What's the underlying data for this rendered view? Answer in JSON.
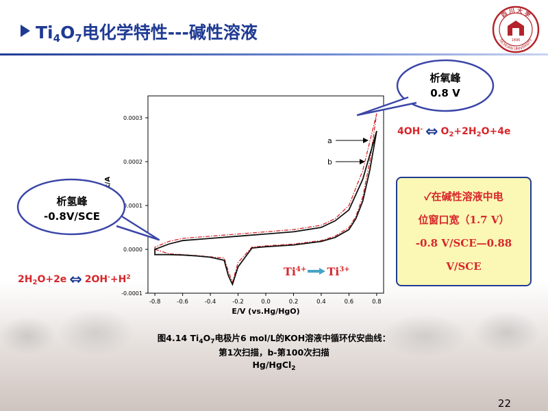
{
  "slide": {
    "title_prefix": "Ti",
    "title_sub1": "4",
    "title_mid": "O",
    "title_sub2": "7",
    "title_suffix": "电化学特性---碱性溶液",
    "page_number": "22"
  },
  "callouts": {
    "oxygen_peak_label": "析氧峰",
    "oxygen_peak_value": "0.8 V",
    "hydrogen_peak_label": "析氢峰",
    "hydrogen_peak_value": "-0.8V/SCE"
  },
  "equations": {
    "oxygen_left": "4OH",
    "oxygen_left_sup": "-",
    "oxygen_right_1": "O",
    "oxygen_right_sub1": "2",
    "oxygen_right_2": "+2H",
    "oxygen_right_sub2": "2",
    "oxygen_right_3": "O+4e",
    "hydrogen_left_1": "2H",
    "hydrogen_left_sub": "2",
    "hydrogen_left_2": "O+2e",
    "hydrogen_right_1": "2OH",
    "hydrogen_right_sup": "-",
    "hydrogen_right_2": "+H",
    "hydrogen_right_sup2": "2",
    "ti_left": "Ti",
    "ti_left_sup": "4+",
    "ti_right": "Ti",
    "ti_right_sup": "3+"
  },
  "note": {
    "line1": "✓在碱性溶液中电",
    "line2": "位窗口宽（1.7 V）",
    "line3": "-0.8 V/SCE—0.88",
    "line4": "V/SCE"
  },
  "caption": {
    "line1_a": "图4.14 Ti",
    "line1_sub1": "4",
    "line1_b": "O",
    "line1_sub2": "7",
    "line1_c": "电极片6 mol/L的KOH溶液中循环伏安曲线：",
    "line2": "第1次扫描，b-第100次扫描",
    "line3_a": "Hg/HgCl",
    "line3_sub": "2"
  },
  "logo": {
    "text_top": "四 川 大 学",
    "text_bottom": "SICHUAN UNIVERSITY",
    "year": "1896"
  },
  "chart_data": {
    "type": "line",
    "xlabel": "E/V (vs.Hg/HgO)",
    "ylabel": "Current/A",
    "xlim": [
      -0.85,
      0.85
    ],
    "ylim": [
      -0.0001,
      0.00035
    ],
    "x_ticks": [
      -0.8,
      -0.6,
      -0.4,
      -0.2,
      0.0,
      0.2,
      0.4,
      0.6,
      0.8
    ],
    "x_tick_labels": [
      "-0.8",
      "-0.6",
      "-0.4",
      "-0.2",
      "0.0",
      "0.2",
      "0.4",
      "0.6",
      "0.8"
    ],
    "y_ticks": [
      -0.0001,
      0.0,
      0.0001,
      0.0002,
      0.0003
    ],
    "y_tick_labels": [
      "-0.0001",
      "0.0000",
      "0.0001",
      "0.0002",
      "0.0003"
    ],
    "series_labels": [
      "a",
      "b"
    ],
    "series": [
      {
        "name": "a",
        "color": "#d7262b",
        "dash": "dashdot",
        "x": [
          -0.8,
          -0.7,
          -0.6,
          -0.5,
          -0.4,
          -0.3,
          -0.27,
          -0.24,
          -0.2,
          -0.1,
          0.0,
          0.2,
          0.4,
          0.5,
          0.6,
          0.65,
          0.7,
          0.75,
          0.8,
          0.8,
          0.7,
          0.6,
          0.5,
          0.4,
          0.3,
          0.2,
          0.0,
          -0.2,
          -0.4,
          -0.6,
          -0.7,
          -0.8
        ],
        "y": [
          0.0,
          -1e-05,
          -1.2e-05,
          -1.4e-05,
          -1.7e-05,
          -2e-05,
          -5e-05,
          -7.5e-05,
          -3e-05,
          5e-06,
          8e-06,
          1.2e-05,
          2e-05,
          3e-05,
          5e-05,
          7.5e-05,
          0.00012,
          0.0002,
          0.00031,
          0.00031,
          0.00018,
          0.0001,
          7e-05,
          5.5e-05,
          5e-05,
          4.5e-05,
          4e-05,
          3.5e-05,
          3e-05,
          2.5e-05,
          1.8e-05,
          5e-06
        ]
      },
      {
        "name": "b",
        "color": "#111111",
        "dash": "solid",
        "x": [
          -0.8,
          -0.7,
          -0.6,
          -0.5,
          -0.4,
          -0.3,
          -0.27,
          -0.24,
          -0.2,
          -0.1,
          0.0,
          0.2,
          0.4,
          0.5,
          0.6,
          0.65,
          0.7,
          0.75,
          0.8,
          0.8,
          0.7,
          0.6,
          0.5,
          0.4,
          0.3,
          0.2,
          0.0,
          -0.2,
          -0.4,
          -0.6,
          -0.7,
          -0.8
        ],
        "y": [
          -1.2e-05,
          -1.2e-05,
          -1.3e-05,
          -1.5e-05,
          -1.8e-05,
          -2.5e-05,
          -6e-05,
          -8e-05,
          -4e-05,
          3e-06,
          6e-06,
          1e-05,
          1.8e-05,
          2.7e-05,
          4.5e-05,
          7e-05,
          0.00011,
          0.00018,
          0.00027,
          0.00027,
          0.00016,
          9e-05,
          6.5e-05,
          5e-05,
          4.5e-05,
          4e-05,
          3.5e-05,
          3e-05,
          2.5e-05,
          2e-05,
          1.2e-05,
          0.0
        ]
      }
    ],
    "grid": false,
    "legend": "none"
  }
}
